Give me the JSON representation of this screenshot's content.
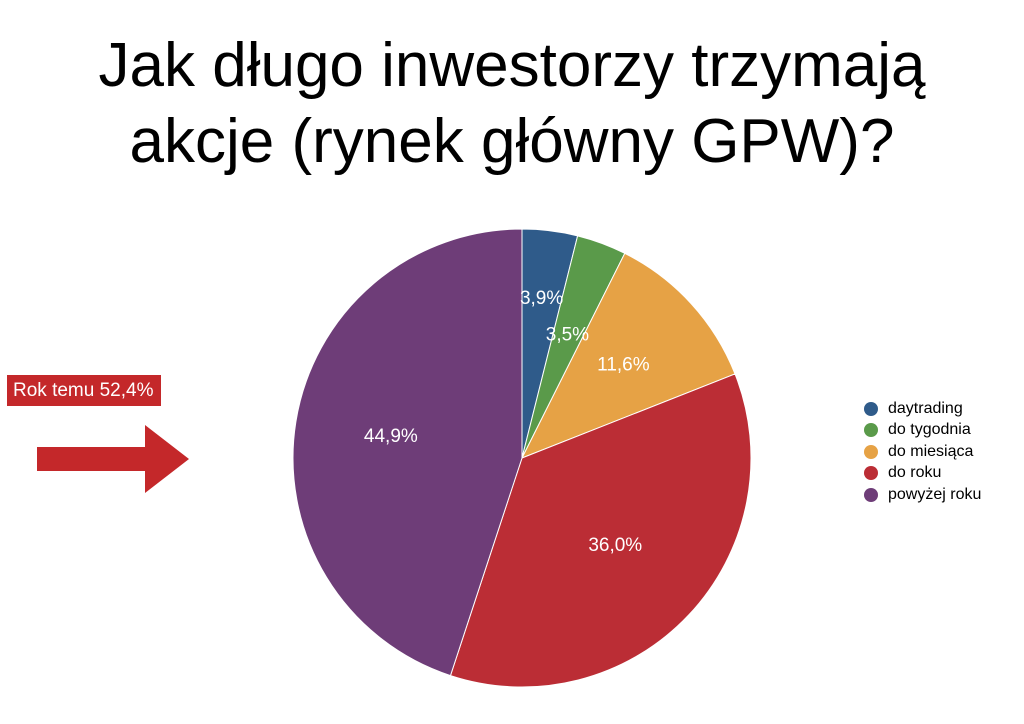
{
  "title_lines": [
    "Jak długo inwestorzy trzymają",
    "akcje (rynek główny GPW)?"
  ],
  "callout": {
    "text": "Rok temu 52,4%",
    "color": "#c4282a"
  },
  "chart_data": {
    "type": "pie",
    "title": "Jak długo inwestorzy trzymają akcje (rynek główny GPW)?",
    "legend_position": "right",
    "slices": [
      {
        "name": "daytrading",
        "value": 3.9,
        "label": "3,9%",
        "color": "#2f5b8a"
      },
      {
        "name": "do tygodnia",
        "value": 3.5,
        "label": "3,5%",
        "color": "#5a9a4a"
      },
      {
        "name": "do miesiąca",
        "value": 11.6,
        "label": "11,6%",
        "color": "#e6a245"
      },
      {
        "name": "do roku",
        "value": 36.0,
        "label": "36,0%",
        "color": "#bb2d35"
      },
      {
        "name": "powyżej roku",
        "value": 44.9,
        "label": "44,9%",
        "color": "#6e3d78"
      }
    ]
  }
}
